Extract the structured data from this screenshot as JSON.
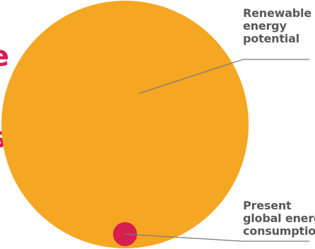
{
  "colors": {
    "renewable": "#f5a623",
    "consumption": "#d61f4f",
    "label_text": "#58585a",
    "leader_line": "#7a7a7c"
  },
  "labels": {
    "renewable": [
      "Renewable",
      "energy",
      "potential"
    ],
    "consumption": [
      "Present",
      "global energy",
      "consumption"
    ]
  },
  "cropped_text": {
    "top": "e",
    "middle": "s"
  }
}
